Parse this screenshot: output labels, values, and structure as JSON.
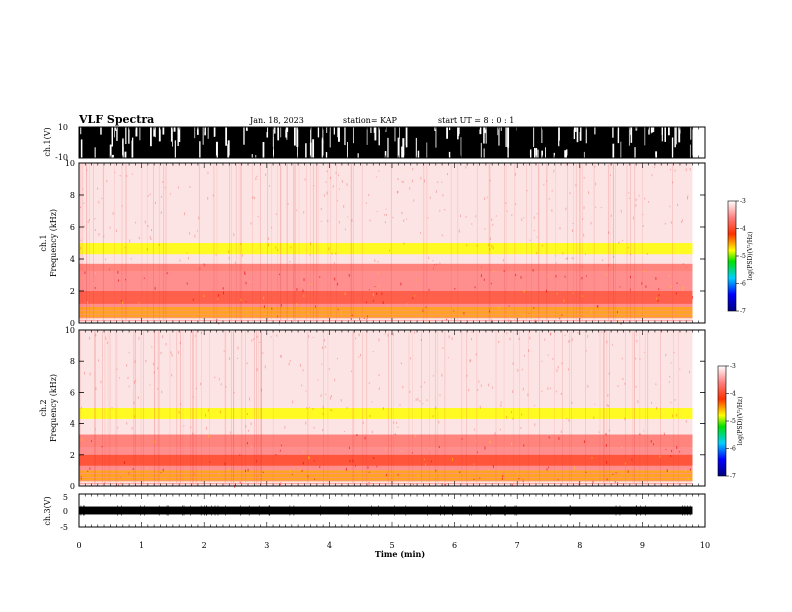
{
  "header": {
    "title": "VLF Spectra",
    "date": "Jan. 18, 2023",
    "station": "station= KAP",
    "start": "start  UT  =   8 : 0  : 1"
  },
  "chart_data": {
    "type": "heatmap",
    "xlabel": "Time (min)",
    "xlim": [
      0,
      10
    ],
    "xticks": [
      "0",
      "1",
      "2",
      "3",
      "4",
      "5",
      "6",
      "7",
      "8",
      "9",
      "10"
    ],
    "data_end_min": 9.8,
    "panels": [
      {
        "id": "ch1v",
        "ylabel": "ch.1(V)",
        "ylim": [
          -10,
          10
        ],
        "yticks": [
          "10",
          "-10"
        ],
        "band": [
          -10,
          10
        ]
      },
      {
        "id": "ch1spec",
        "ylabel": "ch.1 Frequency (kHz)",
        "ylim": [
          0,
          10
        ],
        "yticks": [
          "0",
          "2",
          "4",
          "6",
          "8",
          "10"
        ],
        "colorbar": {
          "label": "log(PSD)(V²/Hz)",
          "ticks": [
            "-3",
            "-4",
            "-5",
            "-6",
            "-7"
          ],
          "range": [
            -7,
            -3
          ]
        },
        "bands": [
          {
            "f": [
              3.2,
              3.7
            ],
            "psd": -3.7
          },
          {
            "f": [
              1.0,
              3.2
            ],
            "psd": -3.6
          },
          {
            "f": [
              1.2,
              2.0
            ],
            "psd": -3.9
          },
          {
            "f": [
              4.3,
              5.0
            ],
            "psd": -4.8
          },
          {
            "f": [
              0.3,
              1.0
            ],
            "psd": -4.5
          }
        ]
      },
      {
        "id": "ch2spec",
        "ylabel": "ch.2 Frequency (kHz)",
        "ylim": [
          0,
          10
        ],
        "yticks": [
          "0",
          "2",
          "4",
          "6",
          "8",
          "10"
        ],
        "colorbar": {
          "label": "log(PSD)(V²/Hz)",
          "ticks": [
            "-3",
            "-4",
            "-5",
            "-6",
            "-7"
          ],
          "range": [
            -7,
            -3
          ]
        },
        "bands": [
          {
            "f": [
              2.5,
              3.3
            ],
            "psd": -3.7
          },
          {
            "f": [
              1.0,
              2.5
            ],
            "psd": -3.6
          },
          {
            "f": [
              1.3,
              2.0
            ],
            "psd": -4.0
          },
          {
            "f": [
              4.3,
              5.0
            ],
            "psd": -4.8
          },
          {
            "f": [
              0.3,
              1.0
            ],
            "psd": -4.5
          }
        ]
      },
      {
        "id": "ch3v",
        "ylabel": "ch.3(V)",
        "ylim": [
          -5,
          5
        ],
        "yticks": [
          "5",
          "0",
          "-5"
        ],
        "band": [
          -1.2,
          1.2
        ]
      }
    ]
  }
}
